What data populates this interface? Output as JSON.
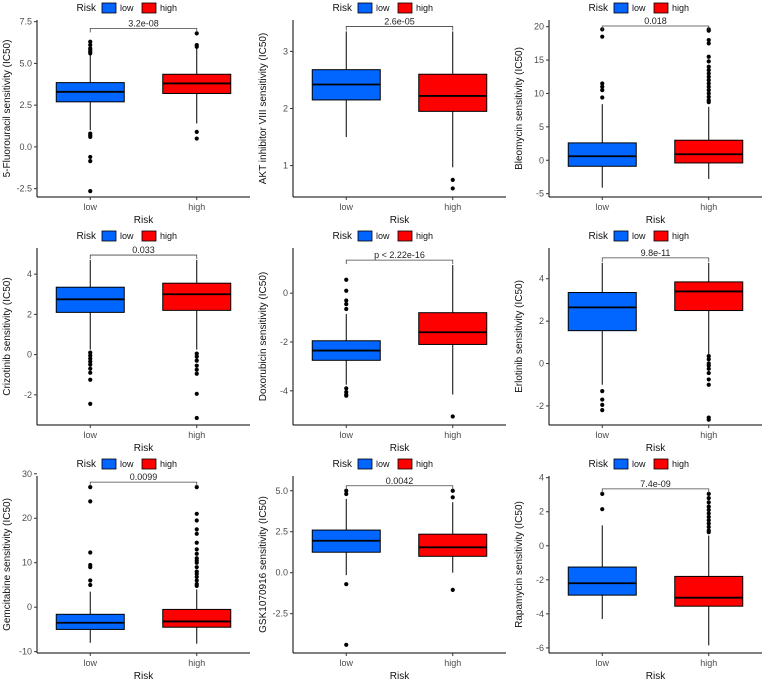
{
  "colors": {
    "low": "#0066FF",
    "high": "#FF0000",
    "outline": "#000000"
  },
  "chart_data": [
    {
      "type": "boxplot",
      "ylabel": "5-Fluorouracil sensitivity (IC50)",
      "xlabel": "Risk",
      "categories": [
        "low",
        "high"
      ],
      "legend": {
        "title": "Risk",
        "entries": [
          "low",
          "high"
        ],
        "position": "top"
      },
      "pvalue": "3.2e-08",
      "ylim": [
        -3.0,
        7.6
      ],
      "yticks": [
        -2.5,
        0.0,
        2.5,
        5.0,
        7.5
      ],
      "ytick_labels": [
        "-2.5",
        "0.0",
        "2.5",
        "5.0",
        "7.5"
      ],
      "groups": [
        {
          "name": "low",
          "q1": 2.7,
          "median": 3.3,
          "q3": 3.85,
          "whisker_low": 1.0,
          "whisker_high": 5.5,
          "outliers": [
            6.3,
            6.1,
            5.9,
            5.8,
            5.7,
            5.6,
            0.8,
            0.7,
            0.6,
            -0.6,
            -0.85,
            -2.65
          ]
        },
        {
          "name": "high",
          "q1": 3.2,
          "median": 3.8,
          "q3": 4.35,
          "whisker_low": 1.4,
          "whisker_high": 5.9,
          "outliers": [
            6.8,
            6.1,
            6.0,
            0.9,
            0.5
          ]
        }
      ]
    },
    {
      "type": "boxplot",
      "ylabel": "AKT inhibitor VIII sensitivity (IC50)",
      "xlabel": "Risk",
      "categories": [
        "low",
        "high"
      ],
      "legend": {
        "title": "Risk",
        "entries": [
          "low",
          "high"
        ],
        "position": "top"
      },
      "pvalue": "2.6e-05",
      "ylim": [
        0.45,
        3.55
      ],
      "yticks": [
        1,
        2,
        3
      ],
      "ytick_labels": [
        "1",
        "2",
        "3"
      ],
      "groups": [
        {
          "name": "low",
          "q1": 2.15,
          "median": 2.42,
          "q3": 2.68,
          "whisker_low": 1.5,
          "whisker_high": 3.35,
          "outliers": []
        },
        {
          "name": "high",
          "q1": 1.95,
          "median": 2.22,
          "q3": 2.6,
          "whisker_low": 0.97,
          "whisker_high": 3.35,
          "outliers": [
            0.75,
            0.6
          ]
        }
      ]
    },
    {
      "type": "boxplot",
      "ylabel": "Bleomycin sensitivity (IC50)",
      "xlabel": "Risk",
      "categories": [
        "low",
        "high"
      ],
      "legend": {
        "title": "Risk",
        "entries": [
          "low",
          "high"
        ],
        "position": "top"
      },
      "pvalue": "0.018",
      "ylim": [
        -5.5,
        21.0
      ],
      "yticks": [
        -5,
        0,
        5,
        10,
        15,
        20
      ],
      "ytick_labels": [
        "-5",
        "0",
        "5",
        "10",
        "15",
        "20"
      ],
      "groups": [
        {
          "name": "low",
          "q1": -0.9,
          "median": 0.6,
          "q3": 2.6,
          "whisker_low": -4.1,
          "whisker_high": 8.4,
          "outliers": [
            19.6,
            18.5,
            11.5,
            11.0,
            10.5,
            9.4
          ]
        },
        {
          "name": "high",
          "q1": -0.4,
          "median": 0.9,
          "q3": 3.0,
          "whisker_low": -2.8,
          "whisker_high": 8.0,
          "outliers": [
            19.6,
            19.4,
            18.0,
            17.5,
            15.5,
            14.8,
            14.0,
            13.5,
            13.0,
            12.5,
            12.0,
            11.5,
            11.0,
            10.5,
            10.0,
            9.5,
            9.0,
            8.7
          ]
        }
      ]
    },
    {
      "type": "boxplot",
      "ylabel": "Crizotinib sensitivity (IC50)",
      "xlabel": "Risk",
      "categories": [
        "low",
        "high"
      ],
      "legend": {
        "title": "Risk",
        "entries": [
          "low",
          "high"
        ],
        "position": "top"
      },
      "pvalue": "0.033",
      "ylim": [
        -3.5,
        5.3
      ],
      "yticks": [
        -2,
        0,
        2,
        4
      ],
      "ytick_labels": [
        "-2",
        "0",
        "2",
        "4"
      ],
      "groups": [
        {
          "name": "low",
          "q1": 2.1,
          "median": 2.75,
          "q3": 3.35,
          "whisker_low": 0.25,
          "whisker_high": 4.7,
          "outliers": [
            0.1,
            -0.05,
            -0.2,
            -0.35,
            -0.5,
            -0.7,
            -0.9,
            -1.25,
            -2.45
          ]
        },
        {
          "name": "high",
          "q1": 2.2,
          "median": 3.0,
          "q3": 3.55,
          "whisker_low": 0.25,
          "whisker_high": 4.7,
          "outliers": [
            0.05,
            -0.1,
            -0.3,
            -0.55,
            -0.75,
            -0.95,
            -1.95,
            -3.15
          ]
        }
      ]
    },
    {
      "type": "boxplot",
      "ylabel": "Doxorubicin sensitivity (IC50)",
      "xlabel": "Risk",
      "categories": [
        "low",
        "high"
      ],
      "legend": {
        "title": "Risk",
        "entries": [
          "low",
          "high"
        ],
        "position": "top"
      },
      "pvalue": "p < 2.22e-16",
      "ylim": [
        -5.4,
        1.85
      ],
      "yticks": [
        -4,
        -2,
        0
      ],
      "ytick_labels": [
        "-4",
        "-2",
        "0"
      ],
      "groups": [
        {
          "name": "low",
          "q1": -2.75,
          "median": -2.35,
          "q3": -1.95,
          "whisker_low": -3.75,
          "whisker_high": -0.85,
          "outliers": [
            0.55,
            0.1,
            -0.3,
            -0.45,
            -0.65,
            -3.9,
            -4.05,
            -4.15,
            -4.2
          ]
        },
        {
          "name": "high",
          "q1": -2.1,
          "median": -1.6,
          "q3": -0.8,
          "whisker_low": -4.15,
          "whisker_high": 1.15,
          "outliers": [
            -5.05
          ]
        }
      ]
    },
    {
      "type": "boxplot",
      "ylabel": "Erlotinib sensitivity (IC50)",
      "xlabel": "Risk",
      "categories": [
        "low",
        "high"
      ],
      "legend": {
        "title": "Risk",
        "entries": [
          "low",
          "high"
        ],
        "position": "top"
      },
      "pvalue": "9.8e-11",
      "ylim": [
        -2.9,
        5.45
      ],
      "yticks": [
        -2,
        0,
        2,
        4
      ],
      "ytick_labels": [
        "-2",
        "0",
        "2",
        "4"
      ],
      "groups": [
        {
          "name": "low",
          "q1": 1.55,
          "median": 2.65,
          "q3": 3.35,
          "whisker_low": -1.0,
          "whisker_high": 4.75,
          "outliers": [
            -1.3,
            -1.7,
            -1.95,
            -2.2
          ]
        },
        {
          "name": "high",
          "q1": 2.5,
          "median": 3.4,
          "q3": 3.85,
          "whisker_low": 0.45,
          "whisker_high": 4.75,
          "outliers": [
            0.35,
            0.2,
            0.0,
            -0.1,
            -0.25,
            -0.45,
            -0.75,
            -1.0,
            -2.55,
            -2.65
          ]
        }
      ]
    },
    {
      "type": "boxplot",
      "ylabel": "Gemcitabine sensitivity (IC50)",
      "xlabel": "Risk",
      "categories": [
        "low",
        "high"
      ],
      "legend": {
        "title": "Risk",
        "entries": [
          "low",
          "high"
        ],
        "position": "top"
      },
      "pvalue": "0.0099",
      "ylim": [
        -10.3,
        29.5
      ],
      "yticks": [
        -10,
        0,
        10,
        20,
        30
      ],
      "ytick_labels": [
        "-10",
        "0",
        "10",
        "20",
        "30"
      ],
      "groups": [
        {
          "name": "low",
          "q1": -5.0,
          "median": -3.5,
          "q3": -1.6,
          "whisker_low": -8.0,
          "whisker_high": 3.5,
          "outliers": [
            27.0,
            23.8,
            12.3,
            9.5,
            9.0,
            6.0,
            5.0
          ]
        },
        {
          "name": "high",
          "q1": -4.5,
          "median": -3.2,
          "q3": -0.5,
          "whisker_low": -8.2,
          "whisker_high": 4.0,
          "outliers": [
            27.0,
            21.0,
            19.5,
            17.5,
            16.5,
            14.5,
            13.0,
            12.0,
            11.0,
            10.5,
            10.0,
            9.0,
            8.0,
            7.5,
            6.8,
            6.0,
            5.2,
            4.8
          ]
        }
      ]
    },
    {
      "type": "boxplot",
      "ylabel": "GSK1070916 sensitivity (IC50)",
      "xlabel": "Risk",
      "categories": [
        "low",
        "high"
      ],
      "legend": {
        "title": "Risk",
        "entries": [
          "low",
          "high"
        ],
        "position": "top"
      },
      "pvalue": "0.0042",
      "ylim": [
        -4.9,
        5.9
      ],
      "yticks": [
        -2.5,
        0.0,
        2.5,
        5.0
      ],
      "ytick_labels": [
        "-2.5",
        "0.0",
        "2.5",
        "5.0"
      ],
      "groups": [
        {
          "name": "low",
          "q1": 1.25,
          "median": 1.95,
          "q3": 2.6,
          "whisker_low": -0.15,
          "whisker_high": 4.5,
          "outliers": [
            5.0,
            4.8,
            -0.7,
            -4.4
          ]
        },
        {
          "name": "high",
          "q1": 1.0,
          "median": 1.55,
          "q3": 2.35,
          "whisker_low": 0.0,
          "whisker_high": 4.3,
          "outliers": [
            5.0,
            4.6,
            -1.05
          ]
        }
      ]
    },
    {
      "type": "boxplot",
      "ylabel": "Rapamycin sensitivity (IC50)",
      "xlabel": "Risk",
      "categories": [
        "low",
        "high"
      ],
      "legend": {
        "title": "Risk",
        "entries": [
          "low",
          "high"
        ],
        "position": "top"
      },
      "pvalue": "7.4e-09",
      "ylim": [
        -6.3,
        4.1
      ],
      "yticks": [
        -6,
        -4,
        -2,
        0,
        2,
        4
      ],
      "ytick_labels": [
        "-6",
        "-4",
        "-2",
        "0",
        "2",
        "4"
      ],
      "groups": [
        {
          "name": "low",
          "q1": -2.9,
          "median": -2.2,
          "q3": -1.25,
          "whisker_low": -4.3,
          "whisker_high": 1.2,
          "outliers": [
            3.05,
            2.15
          ]
        },
        {
          "name": "high",
          "q1": -3.55,
          "median": -3.05,
          "q3": -1.8,
          "whisker_low": -5.85,
          "whisker_high": 0.6,
          "outliers": [
            3.05,
            2.8,
            2.55,
            2.3,
            2.1,
            1.9,
            1.7,
            1.5,
            1.3,
            1.1,
            0.9,
            0.8
          ]
        }
      ]
    }
  ]
}
